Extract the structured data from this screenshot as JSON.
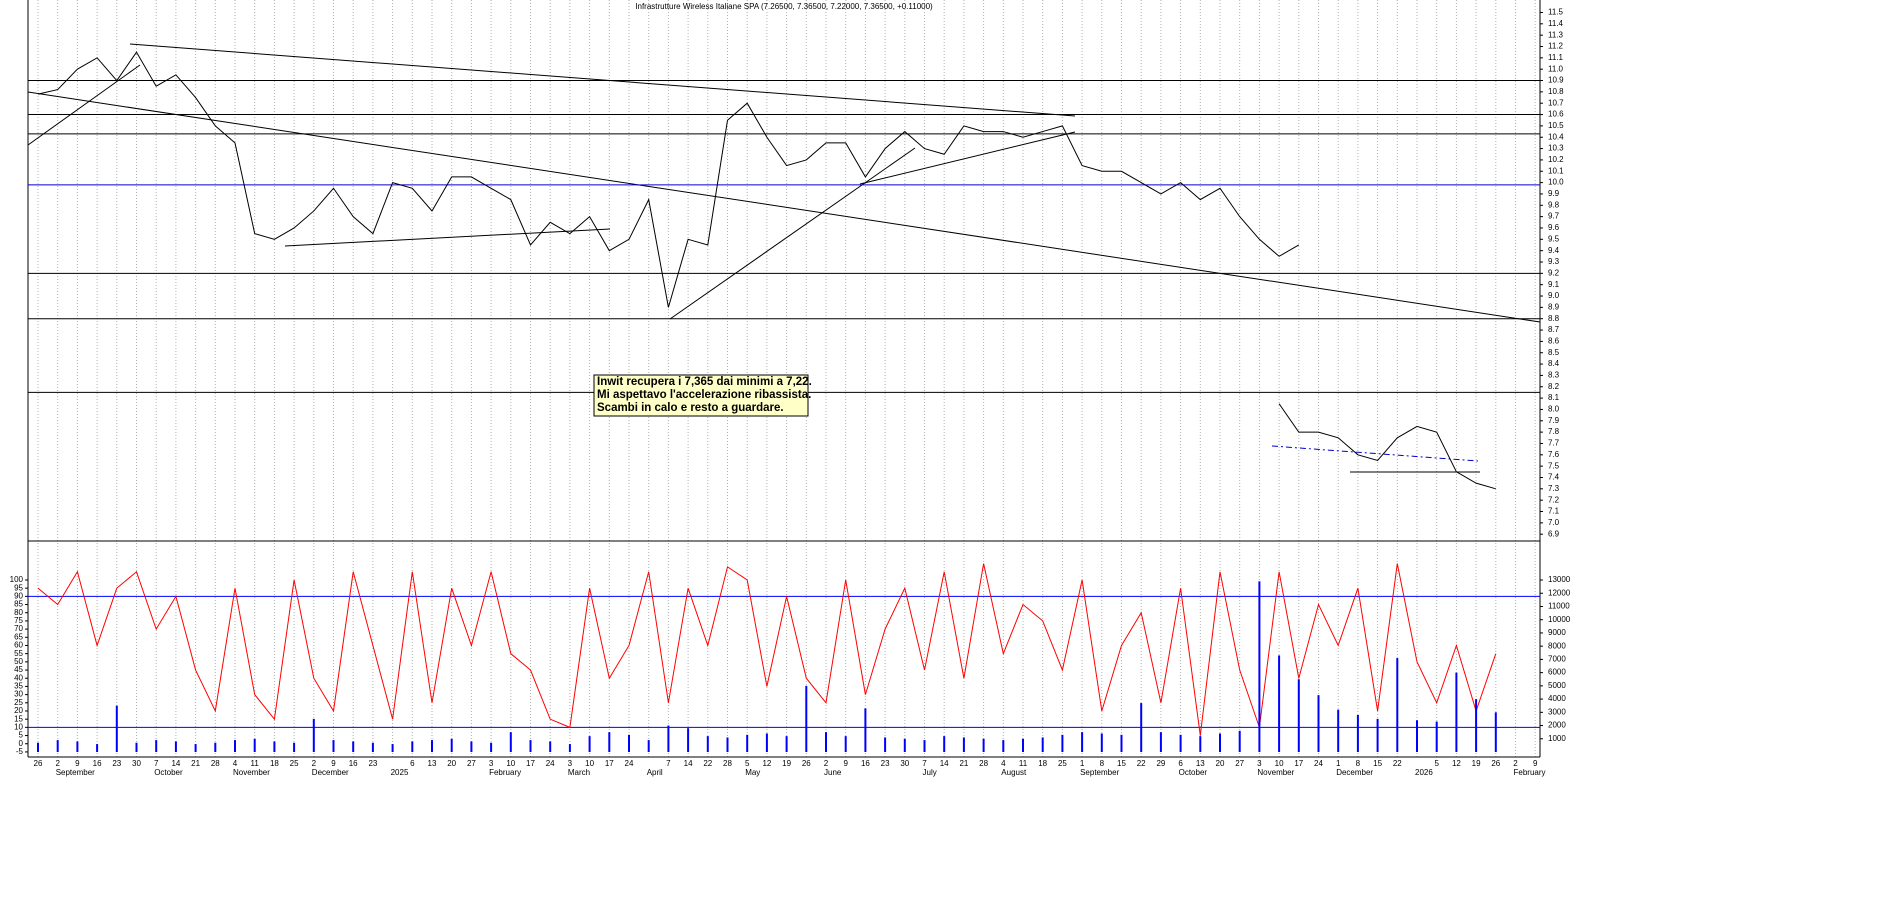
{
  "chart_data": [
    {
      "type": "line",
      "title": "Infrastrutture Wireless Italiane SPA (7.26500, 7.36500, 7.22000, 7.36500, +0.11000)",
      "annotation": [
        "Inwit recupera i 7,365 dai minimi a 7,22.",
        "Mi aspettavo l'accelerazione ribassista.",
        "Scambi in calo e resto a guardare."
      ],
      "categories": [
        "26",
        "2",
        "9",
        "16",
        "23",
        "30",
        "7",
        "14",
        "21",
        "28",
        "4",
        "11",
        "18",
        "25",
        "2",
        "9",
        "16",
        "23",
        null,
        "6",
        "13",
        "20",
        "27",
        "3",
        "10",
        "17",
        "24",
        "3",
        "10",
        "17",
        "24",
        null,
        "7",
        "14",
        "22",
        "28",
        "5",
        "12",
        "19",
        "26",
        "2",
        "9",
        "16",
        "23",
        "30",
        "7",
        "14",
        "21",
        "28",
        "4",
        "11",
        "18",
        "25",
        "1",
        "8",
        "15",
        "22",
        "29",
        "6",
        "13",
        "20",
        "27",
        "3",
        "10",
        "17",
        "24",
        "1",
        "8",
        "15",
        "22",
        null,
        "5",
        "12",
        "19",
        "26",
        "2",
        "9"
      ],
      "month_labels": [
        null,
        "September",
        null,
        null,
        null,
        null,
        "October",
        null,
        null,
        null,
        "November",
        null,
        null,
        null,
        "December",
        null,
        null,
        null,
        "2025",
        null,
        null,
        null,
        null,
        "February",
        null,
        null,
        null,
        "March",
        null,
        null,
        null,
        "April",
        null,
        null,
        null,
        null,
        "May",
        null,
        null,
        null,
        "June",
        null,
        null,
        null,
        null,
        "July",
        null,
        null,
        null,
        "August",
        null,
        null,
        null,
        "September",
        null,
        null,
        null,
        null,
        "October",
        null,
        null,
        null,
        "November",
        null,
        null,
        null,
        "December",
        null,
        null,
        null,
        "2026",
        null,
        null,
        null,
        null,
        "February",
        null
      ],
      "series": [
        {
          "color": "#000000",
          "values": [
            10.78,
            10.82,
            11.0,
            11.1,
            10.9,
            11.15,
            10.85,
            10.95,
            10.75,
            10.5,
            10.35,
            9.55,
            9.5,
            9.6,
            9.75,
            9.95,
            9.7,
            9.55,
            10.0,
            9.95,
            9.75,
            10.05,
            10.05,
            9.95,
            9.85,
            9.45,
            9.65,
            9.55,
            9.7,
            9.4,
            9.5,
            9.85,
            8.9,
            9.5,
            9.45,
            10.55,
            10.7,
            10.4,
            10.15,
            10.2,
            10.35,
            10.35,
            10.05,
            10.3,
            10.45,
            10.3,
            10.25,
            10.5,
            10.45,
            10.45,
            10.4,
            10.45,
            10.5,
            10.15,
            10.1,
            10.1,
            10.0,
            9.9,
            10.0,
            9.85,
            9.95,
            9.7,
            9.5,
            9.35,
            9.45,
            null,
            null,
            null,
            null,
            null,
            null,
            null,
            null,
            null,
            null,
            null,
            null
          ]
        },
        {
          "color": "#000000",
          "values": [
            null,
            null,
            null,
            null,
            null,
            null,
            null,
            null,
            null,
            null,
            null,
            null,
            null,
            null,
            null,
            null,
            null,
            null,
            null,
            null,
            null,
            null,
            null,
            null,
            null,
            null,
            null,
            null,
            null,
            null,
            null,
            null,
            null,
            null,
            null,
            null,
            null,
            null,
            null,
            null,
            null,
            null,
            null,
            null,
            null,
            null,
            null,
            null,
            null,
            null,
            null,
            null,
            null,
            null,
            null,
            null,
            null,
            null,
            null,
            null,
            null,
            null,
            null,
            8.05,
            7.8,
            7.8,
            7.75,
            7.6,
            7.55,
            7.75,
            7.85,
            7.8,
            7.45,
            7.35,
            7.3,
            null,
            null
          ]
        }
      ],
      "levels": [
        {
          "value": 10.9,
          "color": "#000000"
        },
        {
          "value": 10.6,
          "color": "#000000"
        },
        {
          "value": 10.43,
          "color": "#000000"
        },
        {
          "value": 9.98,
          "color": "#0000cc"
        },
        {
          "value": 9.2,
          "color": "#000000"
        },
        {
          "value": 8.8,
          "color": "#000000"
        },
        {
          "value": 8.15,
          "color": "#000000"
        }
      ],
      "ylim": [
        6.84,
        11.61
      ],
      "yticks": [
        6.9,
        {
          "value": 7,
          "label": "7.0"
        },
        7.1,
        7.2,
        7.3,
        7.4,
        7.5,
        7.6,
        7.7,
        7.8,
        7.9,
        {
          "value": 8,
          "label": "8.0"
        },
        8.1,
        8.2,
        8.3,
        8.4,
        8.5,
        8.6,
        8.7,
        8.8,
        8.9,
        {
          "value": 9,
          "label": "9.0"
        },
        9.1,
        9.2,
        9.3,
        9.4,
        9.5,
        9.6,
        9.7,
        9.8,
        9.9,
        {
          "value": 10,
          "label": "10.0"
        },
        10.1,
        10.2,
        10.3,
        10.4,
        10.5,
        10.6,
        10.7,
        10.8,
        10.9,
        {
          "value": 11,
          "label": "11.0"
        },
        11.1,
        11.2,
        11.3,
        11.4,
        11.5
      ],
      "grid": true
    },
    {
      "type": "line",
      "series": [
        {
          "color": "#ff0000",
          "values": [
            95,
            85,
            105,
            60,
            95,
            105,
            70,
            90,
            45,
            20,
            95,
            30,
            15,
            100,
            40,
            20,
            105,
            60,
            15,
            105,
            25,
            95,
            60,
            105,
            55,
            45,
            15,
            10,
            95,
            40,
            60,
            105,
            25,
            95,
            60,
            108,
            100,
            35,
            90,
            40,
            25,
            100,
            30,
            70,
            95,
            45,
            105,
            40,
            110,
            55,
            85,
            75,
            45,
            100,
            20,
            60,
            80,
            25,
            95,
            5,
            105,
            45,
            10,
            105,
            40,
            85,
            60,
            95,
            20,
            110,
            50,
            25,
            60,
            20,
            55,
            null,
            null
          ]
        },
        {
          "type": "bar",
          "axis": "y2",
          "color": "#0000ff",
          "values": [
            700,
            900,
            800,
            600,
            3500,
            700,
            900,
            800,
            600,
            700,
            900,
            1000,
            800,
            700,
            2500,
            900,
            800,
            700,
            600,
            800,
            900,
            1000,
            800,
            700,
            1500,
            900,
            800,
            600,
            1200,
            1500,
            1300,
            900,
            2000,
            1800,
            1200,
            1100,
            1300,
            1400,
            1200,
            5000,
            1500,
            1200,
            3300,
            1100,
            1000,
            900,
            1200,
            1100,
            1000,
            900,
            1000,
            1100,
            1300,
            1500,
            1400,
            1300,
            3700,
            1500,
            1300,
            1200,
            1400,
            1600,
            12900,
            7300,
            5500,
            4300,
            3200,
            2800,
            2500,
            7100,
            2400,
            2300,
            6000,
            4000,
            3000,
            null,
            null
          ]
        }
      ],
      "levels": [
        {
          "value": 90,
          "color": "#0000ff"
        },
        {
          "value": 10,
          "color": "#0000ff"
        }
      ],
      "ylim": [
        -8.1,
        123.8
      ],
      "yticks": [
        -5,
        0,
        5,
        10,
        15,
        20,
        25,
        30,
        35,
        40,
        45,
        50,
        55,
        60,
        65,
        70,
        75,
        80,
        85,
        90,
        95,
        100
      ],
      "y2lim": [
        -378,
        15950
      ],
      "y2ticks": [
        1000,
        2000,
        3000,
        4000,
        5000,
        6000,
        7000,
        8000,
        9000,
        10000,
        11000,
        12000,
        13000
      ]
    }
  ]
}
